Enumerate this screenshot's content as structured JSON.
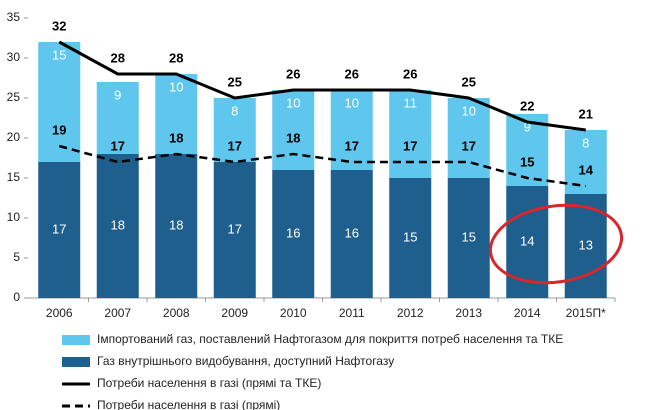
{
  "chart_data": {
    "type": "bar",
    "categories": [
      "2006",
      "2007",
      "2008",
      "2009",
      "2010",
      "2011",
      "2012",
      "2013",
      "2014",
      "2015П*"
    ],
    "stacked": true,
    "series": [
      {
        "name": "Газ внутрішнього видобування, доступний Нафтогазу",
        "type": "bar",
        "color": "#1f5f8e",
        "values": [
          17,
          18,
          18,
          17,
          16,
          16,
          15,
          15,
          14,
          13
        ]
      },
      {
        "name": "Імпортований газ, поставлений Нафтогазом для покриття потреб населення та ТКЕ",
        "type": "bar",
        "color": "#5fc6ee",
        "values": [
          15,
          9,
          10,
          8,
          10,
          10,
          11,
          10,
          9,
          8
        ]
      },
      {
        "name": "Потреби населення в газі (прямі та ТКЕ)",
        "type": "line",
        "color": "#000000",
        "dashed": false,
        "values": [
          32,
          28,
          28,
          25,
          26,
          26,
          26,
          25,
          22,
          21
        ]
      },
      {
        "name": "Потреби населення в газі (прямі)",
        "type": "line",
        "color": "#000000",
        "dashed": true,
        "values": [
          19,
          17,
          18,
          17,
          18,
          17,
          17,
          17,
          15,
          14
        ]
      }
    ],
    "ylim": [
      0,
      35
    ],
    "yticks": [
      0,
      5,
      10,
      15,
      20,
      25,
      30,
      35
    ],
    "grid": false
  }
}
